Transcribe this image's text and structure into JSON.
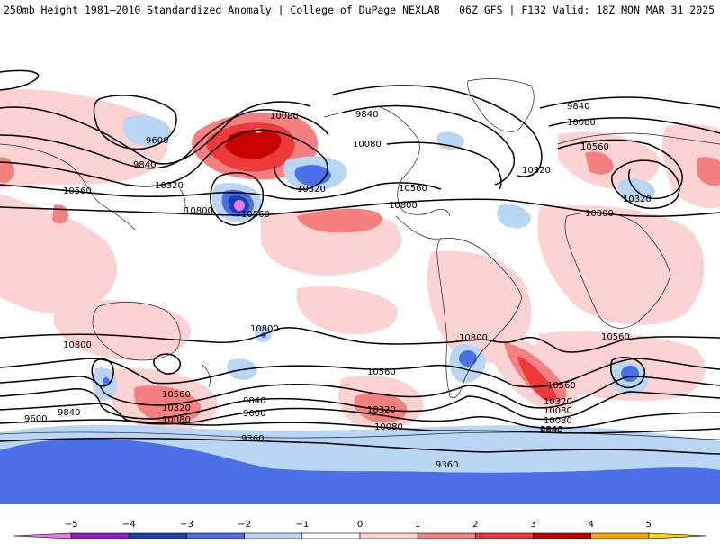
{
  "header": {
    "left": "250mb Height 1981–2010 Standardized Anomaly | College of DuPage NEXLAB",
    "right": "06Z GFS | F132 Valid: 18Z MON MAR 31 2025"
  },
  "contour_labels": [
    "9600",
    "9840",
    "10560",
    "10800",
    "10080",
    "10560",
    "10320",
    "9840",
    "10080",
    "10320",
    "10560",
    "10800",
    "9840",
    "10080",
    "10560",
    "10320",
    "10800",
    "10800",
    "10800",
    "10800",
    "10560",
    "10320",
    "10080",
    "9840",
    "9600",
    "10560",
    "10320",
    "10080",
    "9840",
    "9600",
    "9360",
    "10320",
    "10080",
    "10560",
    "9360",
    "10560",
    "10320",
    "10080",
    "9840",
    "9600"
  ],
  "colorbar": {
    "tick_labels": [
      "−5",
      "−4",
      "−3",
      "−2",
      "−1",
      "0",
      "1",
      "2",
      "3",
      "4",
      "5"
    ],
    "colors": [
      "#ef78ef",
      "#9a19c6",
      "#1941b2",
      "#4b6fe6",
      "#b9d6f5",
      "#ffffff",
      "#fcd2d2",
      "#f58080",
      "#ec3a3a",
      "#c80000",
      "#ffa500",
      "#ffd700"
    ]
  },
  "shading_colors": {
    "light_pink": "#fcd2d2",
    "pink": "#f58080",
    "red": "#ec3a3a",
    "dark_red": "#c80000",
    "orange": "#ffa500",
    "light_blue": "#b9d6f5",
    "blue": "#4b6fe6",
    "dark_blue": "#1941b2",
    "magenta": "#ef78ef"
  }
}
